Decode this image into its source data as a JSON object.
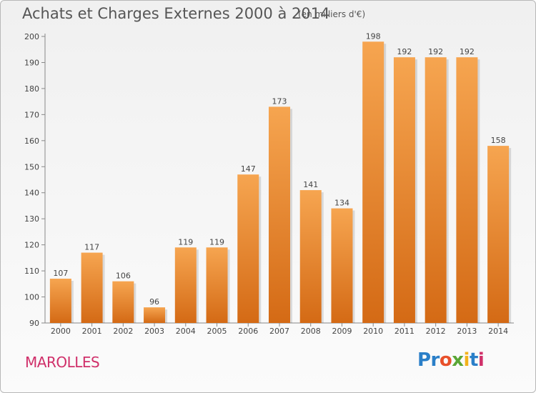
{
  "header": {
    "title": "Achats et Charges Externes 2000 à 2014",
    "unit": "(en milliers d'€)"
  },
  "footer": {
    "commune": "MAROLLES",
    "logo": [
      "Pr",
      "o",
      "x",
      "i",
      "t",
      "i"
    ]
  },
  "colors": {
    "bar_light": "#f6a550",
    "bar_dark": "#d46a15",
    "commune": "#d0306a",
    "text": "#555555"
  },
  "chart_data": {
    "type": "bar",
    "title": "Achats et Charges Externes 2000 à 2014",
    "subtitle": "(en milliers d'€)",
    "categories": [
      "2000",
      "2001",
      "2002",
      "2003",
      "2004",
      "2005",
      "2006",
      "2007",
      "2008",
      "2009",
      "2010",
      "2011",
      "2012",
      "2013",
      "2014"
    ],
    "values": [
      107,
      117,
      106,
      96,
      119,
      119,
      147,
      173,
      141,
      134,
      198,
      192,
      192,
      192,
      158
    ],
    "ylim": [
      90,
      200
    ],
    "yticks": [
      90,
      100,
      110,
      120,
      130,
      140,
      150,
      160,
      170,
      180,
      190,
      200
    ],
    "grid": false,
    "data_labels": true
  }
}
